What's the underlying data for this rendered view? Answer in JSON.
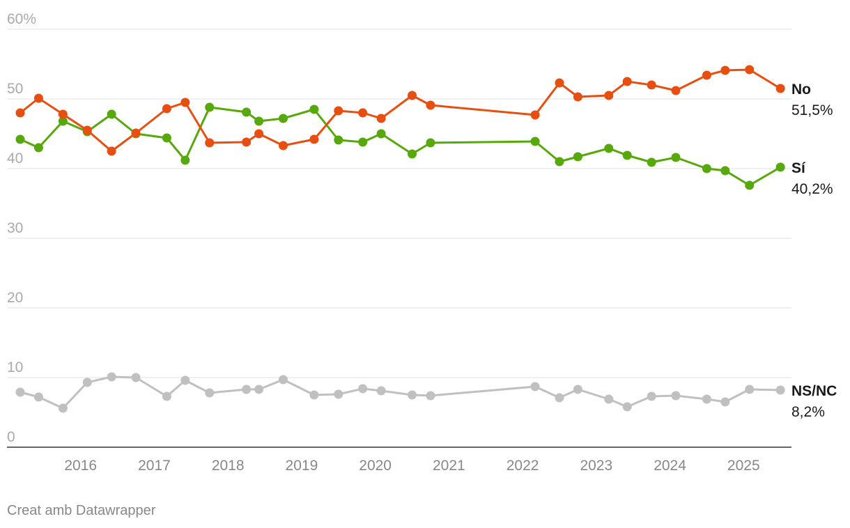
{
  "chart_data": {
    "type": "line",
    "ylim": [
      0,
      60
    ],
    "y_ticks": [
      {
        "value": 0,
        "label": "0"
      },
      {
        "value": 10,
        "label": "10"
      },
      {
        "value": 20,
        "label": "20"
      },
      {
        "value": 30,
        "label": "30"
      },
      {
        "value": 40,
        "label": "40"
      },
      {
        "value": 50,
        "label": "50"
      },
      {
        "value": 60,
        "label": "60%"
      }
    ],
    "xlim": [
      2015.0,
      2025.65
    ],
    "x_ticks": [
      {
        "value": 2016,
        "label": "2016"
      },
      {
        "value": 2017,
        "label": "2017"
      },
      {
        "value": 2018,
        "label": "2018"
      },
      {
        "value": 2019,
        "label": "2019"
      },
      {
        "value": 2020,
        "label": "2020"
      },
      {
        "value": 2021,
        "label": "2021"
      },
      {
        "value": 2022,
        "label": "2022"
      },
      {
        "value": 2023,
        "label": "2023"
      },
      {
        "value": 2024,
        "label": "2024"
      },
      {
        "value": 2025,
        "label": "2025"
      }
    ],
    "x": [
      2015.18,
      2015.43,
      2015.76,
      2016.09,
      2016.42,
      2016.75,
      2017.17,
      2017.42,
      2017.75,
      2018.25,
      2018.42,
      2018.75,
      2019.17,
      2019.5,
      2019.83,
      2020.08,
      2020.5,
      2020.75,
      2022.17,
      2022.5,
      2022.75,
      2023.17,
      2023.42,
      2023.75,
      2024.08,
      2024.5,
      2024.75,
      2025.08,
      2025.5
    ],
    "series": [
      {
        "name": "No",
        "color": "#e84e0f",
        "values": [
          48.0,
          50.1,
          47.8,
          45.5,
          42.5,
          45.1,
          48.6,
          49.5,
          43.7,
          43.8,
          45.0,
          43.3,
          44.2,
          48.3,
          48.0,
          47.2,
          50.5,
          49.1,
          47.7,
          52.3,
          50.3,
          50.5,
          52.5,
          52.0,
          51.2,
          53.4,
          54.1,
          54.2,
          51.5
        ],
        "label_name": "No",
        "label_value": "51,5%"
      },
      {
        "name": "Sí",
        "color": "#57a80a",
        "values": [
          44.2,
          43.0,
          46.8,
          45.3,
          47.8,
          45.0,
          44.4,
          41.2,
          48.8,
          48.1,
          46.8,
          47.2,
          48.5,
          44.1,
          43.8,
          45.0,
          42.1,
          43.7,
          43.9,
          41.0,
          41.7,
          42.9,
          41.9,
          40.9,
          41.6,
          40.0,
          39.7,
          37.6,
          40.2
        ],
        "label_name": "Sí",
        "label_value": "40,2%"
      },
      {
        "name": "NS/NC",
        "color": "#c0c0c0",
        "values": [
          7.9,
          7.2,
          5.6,
          9.3,
          10.1,
          10.0,
          7.3,
          9.6,
          7.8,
          8.3,
          8.3,
          9.7,
          7.5,
          7.6,
          8.4,
          8.1,
          7.5,
          7.4,
          8.7,
          7.1,
          8.3,
          6.9,
          5.8,
          7.3,
          7.4,
          6.9,
          6.5,
          8.3,
          8.2
        ],
        "label_name": "NS/NC",
        "label_value": "8,2%"
      }
    ]
  },
  "footer": {
    "credit": "Creat amb Datawrapper"
  }
}
